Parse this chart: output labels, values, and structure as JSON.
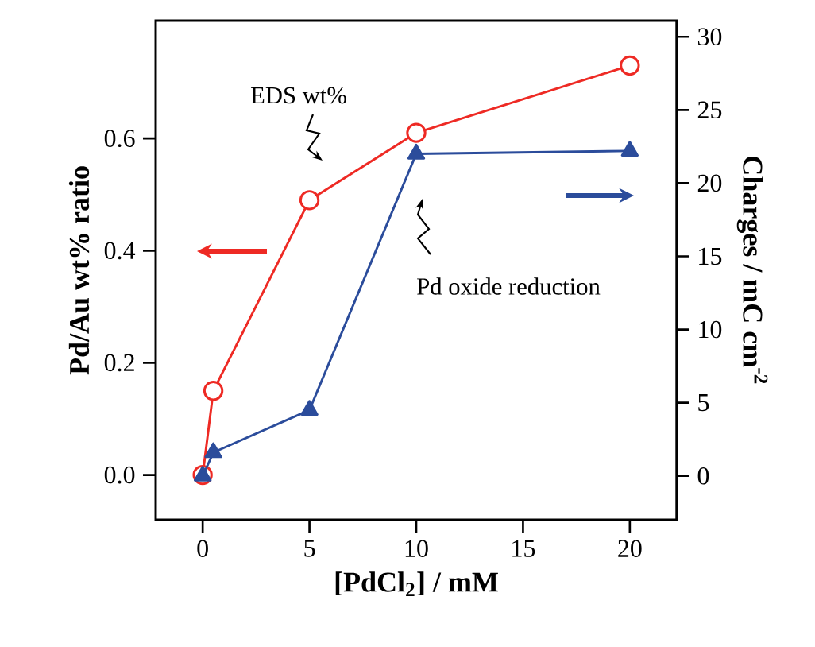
{
  "chart_data": {
    "type": "line",
    "xlabel": "[PdCl$_{2}$] / mM",
    "ylabel": "Pd/Au wt% ratio",
    "y2label": "Charges / mC cm$^{-2}$",
    "annotations": [
      "EDS wt%",
      "Pd oxide reduction"
    ],
    "x": [
      0,
      0.5,
      5,
      10,
      20
    ],
    "series": [
      {
        "color": "#ee2a24",
        "marker": "circle",
        "values": [
          0,
          0.15,
          0.49,
          0.61,
          0.73
        ]
      },
      {
        "color": "#2b4c9b",
        "marker": "triangle",
        "axis": "y2",
        "values": [
          0,
          1.6,
          4.5,
          22.0,
          22.2
        ]
      }
    ],
    "xlim": [
      -2.2,
      22.2
    ],
    "xticks": [
      0,
      5,
      10,
      15,
      20
    ],
    "ylim": [
      -0.08,
      0.81
    ],
    "yticks": [
      {
        "value": 0,
        "label": "0.0"
      },
      0.2,
      0.4,
      0.6
    ],
    "y2lim": [
      -3,
      31.1
    ],
    "y2ticks": [
      0,
      5,
      10,
      15,
      20,
      25,
      30
    ]
  }
}
